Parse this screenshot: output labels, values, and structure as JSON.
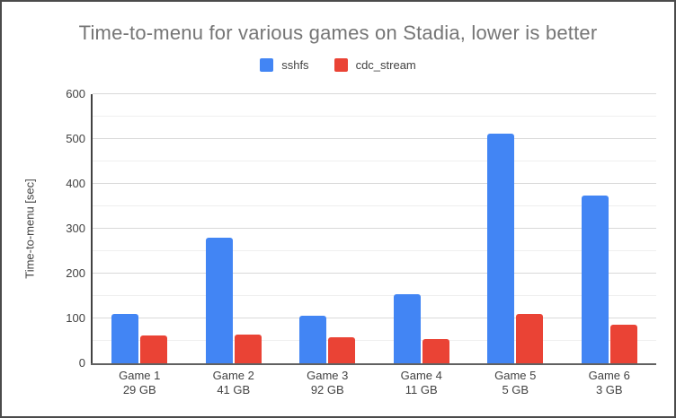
{
  "window": {
    "background": "#ffffff",
    "border_color": "#4b4b4b"
  },
  "chart_data": {
    "type": "bar",
    "title": "Time-to-menu for various games on Stadia, lower is better",
    "xlabel": "",
    "ylabel": "Time-to-menu [sec]",
    "ylim": [
      0,
      600
    ],
    "y_ticks": [
      0,
      100,
      200,
      300,
      400,
      500,
      600
    ],
    "y_minor_step": 50,
    "grid": true,
    "legend_position": "top",
    "categories": [
      "Game 1",
      "Game 2",
      "Game 3",
      "Game 4",
      "Game 5",
      "Game 6"
    ],
    "category_sublabels": [
      "29 GB",
      "41 GB",
      "92 GB",
      "11 GB",
      "5 GB",
      "3 GB"
    ],
    "series": [
      {
        "name": "sshfs",
        "color": "#4285F4",
        "values": [
          110,
          280,
          107,
          155,
          512,
          375
        ]
      },
      {
        "name": "cdc_stream",
        "color": "#EA4335",
        "values": [
          62,
          64,
          59,
          55,
          110,
          87
        ]
      }
    ]
  },
  "colors": {
    "title_text": "#757575",
    "axis_text": "#424242",
    "grid_major": "#d9d9d9",
    "grid_minor": "#efefef",
    "axis_line": "#424242",
    "baseline": "#616161"
  }
}
